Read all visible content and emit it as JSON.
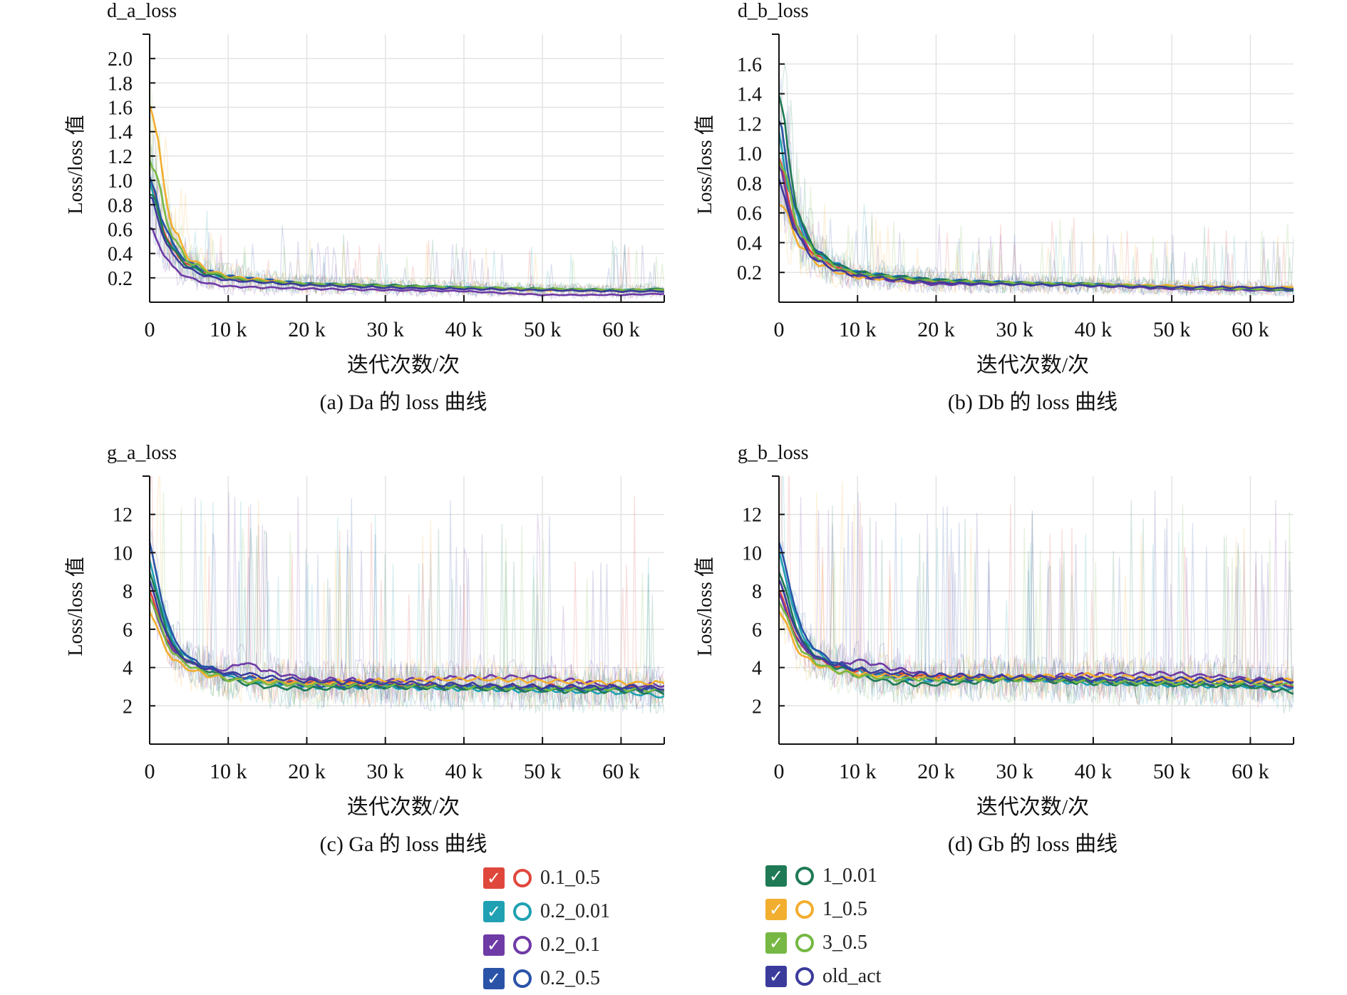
{
  "colors": {
    "0.1_0.5": "#e0473c",
    "0.2_0.01": "#20a1b3",
    "0.2_0.1": "#6e3aa6",
    "0.2_0.5": "#2a53a8",
    "1_0.01": "#1e7a55",
    "1_0.5": "#f2ae2f",
    "3_0.5": "#76b843",
    "old_act": "#3b3b9c"
  },
  "legend": {
    "left": [
      {
        "label": "0.1_0.5",
        "color": "#e0473c",
        "check": "check-icon",
        "ring": "ring-icon"
      },
      {
        "label": "0.2_0.01",
        "color": "#20a1b3",
        "check": "check-icon",
        "ring": "ring-icon"
      },
      {
        "label": "0.2_0.1",
        "color": "#6e3aa6",
        "check": "check-icon",
        "ring": "ring-icon"
      },
      {
        "label": "0.2_0.5",
        "color": "#2a53a8",
        "check": "check-icon",
        "ring": "ring-icon"
      }
    ],
    "right": [
      {
        "label": "1_0.01",
        "color": "#1e7a55",
        "check": "check-icon",
        "ring": "ring-icon"
      },
      {
        "label": "1_0.5",
        "color": "#f2ae2f",
        "check": "check-icon",
        "ring": "ring-icon"
      },
      {
        "label": "3_0.5",
        "color": "#76b843",
        "check": "check-icon",
        "ring": "ring-icon"
      },
      {
        "label": "old_act",
        "color": "#3b3b9c",
        "check": "check-icon",
        "ring": "ring-icon"
      }
    ]
  },
  "chart_data": [
    {
      "type": "line",
      "title": "d_a_loss",
      "caption": "(a) Da 的 loss 曲线",
      "xlabel": "迭代次数/次",
      "ylabel": "Loss/loss 值",
      "x_ticks": [
        0,
        10000,
        20000,
        30000,
        40000,
        50000,
        60000
      ],
      "x_tick_labels": [
        "0",
        "10 k",
        "20 k",
        "30 k",
        "40 k",
        "50 k",
        "60 k"
      ],
      "y_ticks": [
        0.2,
        0.4,
        0.6,
        0.8,
        1.0,
        1.2,
        1.4,
        1.6,
        1.8,
        2.0
      ],
      "y_tick_labels": [
        "0.2",
        "0.4",
        "0.6",
        "0.8",
        "1.0",
        "1.2",
        "1.4",
        "1.6",
        "1.8",
        "2.0"
      ],
      "xlim": [
        0,
        65500
      ],
      "ylim": [
        0.0,
        2.2
      ],
      "x": [
        0,
        1000,
        2000,
        3000,
        5000,
        7500,
        10000,
        15000,
        20000,
        30000,
        40000,
        50000,
        60000,
        65500
      ],
      "series": [
        {
          "name": "0.1_0.5",
          "values": [
            1.0,
            0.78,
            0.55,
            0.42,
            0.3,
            0.24,
            0.2,
            0.17,
            0.15,
            0.13,
            0.12,
            0.1,
            0.09,
            0.09
          ]
        },
        {
          "name": "0.2_0.01",
          "values": [
            0.95,
            0.8,
            0.6,
            0.45,
            0.31,
            0.24,
            0.21,
            0.18,
            0.15,
            0.13,
            0.12,
            0.1,
            0.1,
            0.1
          ]
        },
        {
          "name": "0.2_0.1",
          "values": [
            0.6,
            0.5,
            0.38,
            0.28,
            0.2,
            0.15,
            0.13,
            0.12,
            0.11,
            0.1,
            0.09,
            0.06,
            0.06,
            0.07
          ]
        },
        {
          "name": "0.2_0.5",
          "values": [
            1.0,
            0.82,
            0.62,
            0.46,
            0.32,
            0.25,
            0.21,
            0.18,
            0.15,
            0.13,
            0.11,
            0.1,
            0.09,
            0.09
          ]
        },
        {
          "name": "1_0.01",
          "values": [
            0.9,
            0.75,
            0.55,
            0.42,
            0.29,
            0.23,
            0.2,
            0.17,
            0.15,
            0.14,
            0.12,
            0.11,
            0.1,
            0.11
          ]
        },
        {
          "name": "1_0.5",
          "values": [
            1.7,
            1.3,
            0.9,
            0.6,
            0.36,
            0.26,
            0.21,
            0.18,
            0.15,
            0.13,
            0.12,
            0.1,
            0.1,
            0.1
          ]
        },
        {
          "name": "3_0.5",
          "values": [
            1.2,
            1.0,
            0.72,
            0.52,
            0.33,
            0.25,
            0.2,
            0.17,
            0.15,
            0.13,
            0.12,
            0.11,
            0.1,
            0.1
          ]
        },
        {
          "name": "old_act",
          "values": [
            0.85,
            0.7,
            0.5,
            0.38,
            0.27,
            0.21,
            0.18,
            0.16,
            0.14,
            0.12,
            0.11,
            0.1,
            0.09,
            0.09
          ]
        }
      ]
    },
    {
      "type": "line",
      "title": "d_b_loss",
      "caption": "(b) Db 的 loss 曲线",
      "xlabel": "迭代次数/次",
      "ylabel": "Loss/loss 值",
      "x_ticks": [
        0,
        10000,
        20000,
        30000,
        40000,
        50000,
        60000
      ],
      "x_tick_labels": [
        "0",
        "10 k",
        "20 k",
        "30 k",
        "40 k",
        "50 k",
        "60 k"
      ],
      "y_ticks": [
        0.2,
        0.4,
        0.6,
        0.8,
        1.0,
        1.2,
        1.4,
        1.6
      ],
      "y_tick_labels": [
        "0.2",
        "0.4",
        "0.6",
        "0.8",
        "1.0",
        "1.2",
        "1.4",
        "1.6"
      ],
      "xlim": [
        0,
        65500
      ],
      "ylim": [
        0.0,
        1.8
      ],
      "x": [
        0,
        1000,
        2000,
        3000,
        5000,
        7500,
        10000,
        15000,
        20000,
        30000,
        40000,
        50000,
        60000,
        65500
      ],
      "series": [
        {
          "name": "0.1_0.5",
          "values": [
            0.95,
            0.75,
            0.55,
            0.42,
            0.3,
            0.23,
            0.19,
            0.16,
            0.14,
            0.13,
            0.12,
            0.1,
            0.09,
            0.09
          ]
        },
        {
          "name": "0.2_0.01",
          "values": [
            1.1,
            0.85,
            0.62,
            0.46,
            0.32,
            0.25,
            0.2,
            0.17,
            0.15,
            0.13,
            0.12,
            0.1,
            0.09,
            0.08
          ]
        },
        {
          "name": "0.2_0.1",
          "values": [
            0.9,
            0.7,
            0.52,
            0.4,
            0.28,
            0.21,
            0.17,
            0.14,
            0.12,
            0.12,
            0.11,
            0.09,
            0.08,
            0.08
          ]
        },
        {
          "name": "0.2_0.5",
          "values": [
            1.2,
            0.92,
            0.66,
            0.48,
            0.33,
            0.25,
            0.2,
            0.17,
            0.15,
            0.13,
            0.12,
            0.1,
            0.09,
            0.09
          ]
        },
        {
          "name": "1_0.01",
          "values": [
            1.4,
            1.05,
            0.72,
            0.5,
            0.33,
            0.25,
            0.2,
            0.17,
            0.15,
            0.13,
            0.12,
            0.1,
            0.09,
            0.08
          ]
        },
        {
          "name": "1_0.5",
          "values": [
            0.7,
            0.58,
            0.45,
            0.36,
            0.26,
            0.2,
            0.17,
            0.15,
            0.14,
            0.13,
            0.12,
            0.11,
            0.1,
            0.1
          ]
        },
        {
          "name": "3_0.5",
          "values": [
            1.0,
            0.8,
            0.58,
            0.44,
            0.3,
            0.23,
            0.19,
            0.16,
            0.14,
            0.13,
            0.12,
            0.1,
            0.09,
            0.09
          ]
        },
        {
          "name": "old_act",
          "values": [
            0.8,
            0.65,
            0.5,
            0.38,
            0.27,
            0.21,
            0.18,
            0.15,
            0.13,
            0.12,
            0.11,
            0.1,
            0.1,
            0.09
          ]
        }
      ]
    },
    {
      "type": "line",
      "title": "g_a_loss",
      "caption": "(c) Ga 的 loss 曲线",
      "xlabel": "迭代次数/次",
      "ylabel": "Loss/loss 值",
      "x_ticks": [
        0,
        10000,
        20000,
        30000,
        40000,
        50000,
        60000
      ],
      "x_tick_labels": [
        "0",
        "10 k",
        "20 k",
        "30 k",
        "40 k",
        "50 k",
        "60 k"
      ],
      "y_ticks": [
        2,
        4,
        6,
        8,
        10,
        12
      ],
      "y_tick_labels": [
        "2",
        "4",
        "6",
        "8",
        "10",
        "12"
      ],
      "xlim": [
        0,
        65500
      ],
      "ylim": [
        0,
        14
      ],
      "x": [
        0,
        1000,
        2000,
        3000,
        5000,
        7500,
        10000,
        12000,
        15000,
        20000,
        30000,
        40000,
        50000,
        60000,
        65500
      ],
      "series": [
        {
          "name": "0.1_0.5",
          "values": [
            8.0,
            6.8,
            5.6,
            4.9,
            4.3,
            3.9,
            3.6,
            3.5,
            3.3,
            3.2,
            3.1,
            3.0,
            3.0,
            2.9,
            2.9
          ]
        },
        {
          "name": "0.2_0.01",
          "values": [
            9.5,
            8.0,
            6.4,
            5.3,
            4.4,
            3.9,
            3.5,
            3.4,
            3.2,
            3.0,
            3.0,
            2.9,
            2.8,
            2.7,
            2.5
          ]
        },
        {
          "name": "0.2_0.1",
          "values": [
            7.6,
            6.6,
            5.5,
            4.8,
            4.2,
            3.9,
            3.9,
            4.3,
            3.8,
            3.4,
            3.3,
            3.5,
            3.5,
            3.0,
            3.1
          ]
        },
        {
          "name": "0.2_0.5",
          "values": [
            10.5,
            8.6,
            6.8,
            5.5,
            4.5,
            4.0,
            3.6,
            3.5,
            3.3,
            3.1,
            3.0,
            3.0,
            2.9,
            2.9,
            2.8
          ]
        },
        {
          "name": "1_0.01",
          "values": [
            9.0,
            7.6,
            6.2,
            5.1,
            4.3,
            3.8,
            3.4,
            3.2,
            3.0,
            2.9,
            3.0,
            2.9,
            2.8,
            2.8,
            2.7
          ]
        },
        {
          "name": "1_0.5",
          "values": [
            7.0,
            6.0,
            5.0,
            4.4,
            3.9,
            3.6,
            3.4,
            3.3,
            3.3,
            3.2,
            3.3,
            3.4,
            3.3,
            3.2,
            3.2
          ]
        },
        {
          "name": "3_0.5",
          "values": [
            7.8,
            6.6,
            5.5,
            4.7,
            4.1,
            3.7,
            3.4,
            3.3,
            3.2,
            3.1,
            3.1,
            3.0,
            2.9,
            2.9,
            2.8
          ]
        },
        {
          "name": "old_act",
          "values": [
            8.5,
            7.2,
            5.9,
            5.0,
            4.3,
            3.9,
            3.7,
            3.7,
            3.5,
            3.3,
            3.2,
            3.1,
            3.0,
            3.0,
            2.9
          ]
        }
      ]
    },
    {
      "type": "line",
      "title": "g_b_loss",
      "caption": "(d) Gb 的 loss 曲线",
      "xlabel": "迭代次数/次",
      "ylabel": "Loss/loss 值",
      "x_ticks": [
        0,
        10000,
        20000,
        30000,
        40000,
        50000,
        60000
      ],
      "x_tick_labels": [
        "0",
        "10 k",
        "20 k",
        "30 k",
        "40 k",
        "50 k",
        "60 k"
      ],
      "y_ticks": [
        2,
        4,
        6,
        8,
        10,
        12
      ],
      "y_tick_labels": [
        "2",
        "4",
        "6",
        "8",
        "10",
        "12"
      ],
      "xlim": [
        0,
        65500
      ],
      "ylim": [
        0,
        14
      ],
      "x": [
        0,
        1000,
        2000,
        3000,
        5000,
        7500,
        10000,
        12000,
        15000,
        20000,
        30000,
        40000,
        50000,
        60000,
        65500
      ],
      "series": [
        {
          "name": "0.1_0.5",
          "values": [
            8.0,
            7.0,
            5.8,
            5.0,
            4.4,
            4.0,
            3.8,
            3.7,
            3.6,
            3.5,
            3.4,
            3.3,
            3.2,
            3.1,
            3.1
          ]
        },
        {
          "name": "0.2_0.01",
          "values": [
            10.0,
            8.5,
            6.8,
            5.6,
            4.7,
            4.1,
            3.8,
            3.6,
            3.5,
            3.3,
            3.4,
            3.2,
            3.1,
            3.0,
            2.9
          ]
        },
        {
          "name": "0.2_0.1",
          "values": [
            7.8,
            6.8,
            5.7,
            5.0,
            4.4,
            4.1,
            4.4,
            4.2,
            3.9,
            3.6,
            3.5,
            3.6,
            3.7,
            3.4,
            3.3
          ]
        },
        {
          "name": "0.2_0.5",
          "values": [
            10.5,
            9.0,
            7.2,
            5.8,
            4.8,
            4.2,
            3.9,
            3.7,
            3.5,
            3.4,
            3.4,
            3.3,
            3.2,
            3.1,
            3.0
          ]
        },
        {
          "name": "1_0.01",
          "values": [
            9.0,
            7.8,
            6.4,
            5.3,
            4.5,
            4.0,
            3.6,
            3.4,
            3.2,
            3.1,
            3.4,
            3.2,
            3.1,
            3.0,
            2.7
          ]
        },
        {
          "name": "1_0.5",
          "values": [
            7.0,
            6.2,
            5.2,
            4.6,
            4.1,
            3.8,
            3.7,
            3.6,
            3.6,
            3.5,
            3.5,
            3.6,
            3.4,
            3.3,
            3.3
          ]
        },
        {
          "name": "3_0.5",
          "values": [
            7.5,
            6.6,
            5.6,
            4.8,
            4.2,
            3.8,
            3.6,
            3.5,
            3.4,
            3.4,
            3.4,
            3.3,
            3.2,
            3.2,
            3.1
          ]
        },
        {
          "name": "old_act",
          "values": [
            8.5,
            7.4,
            6.1,
            5.2,
            4.5,
            4.1,
            3.9,
            3.8,
            3.7,
            3.6,
            3.5,
            3.4,
            3.4,
            3.3,
            3.3
          ]
        }
      ]
    }
  ]
}
